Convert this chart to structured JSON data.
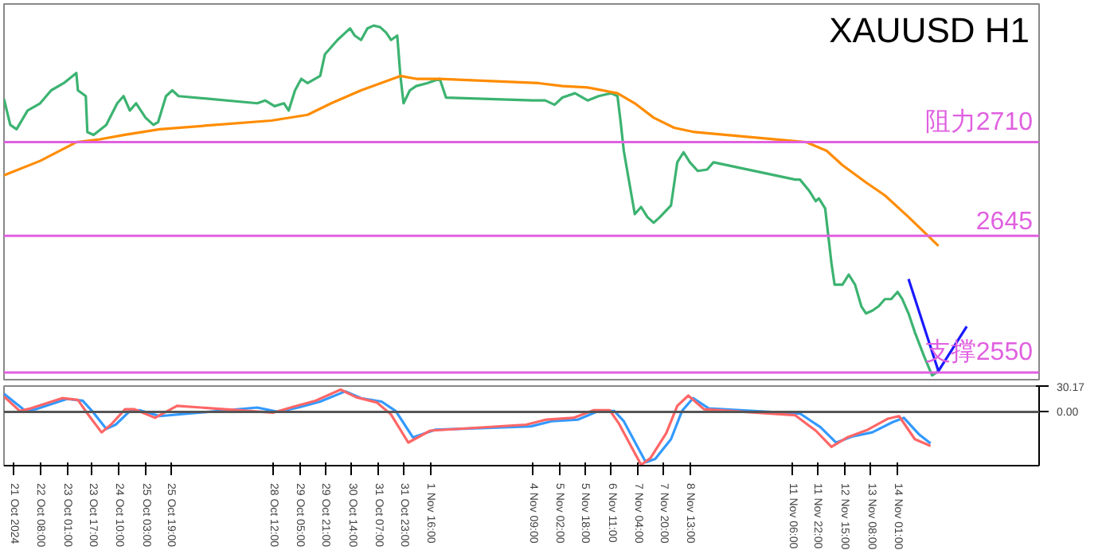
{
  "chart_data": [
    {
      "type": "line",
      "title": "XAUUSD H1",
      "xlim": [
        "2024-10-21T09:00",
        "2024-11-17T19:00"
      ],
      "ylim": [
        2545,
        2806
      ],
      "tick_labels": false,
      "series": [
        {
          "color": "#3cb371",
          "x": [
            "2024-10-21T09:00",
            "2024-10-21T13:00",
            "2024-10-21T17:00",
            "2024-10-22T00:00",
            "2024-10-22T08:00",
            "2024-10-22T15:00",
            "2024-10-22T23:00",
            "2024-10-23T07:00",
            "2024-10-23T08:00",
            "2024-10-23T13:00",
            "2024-10-23T14:00",
            "2024-10-23T18:00",
            "2024-10-24T02:00",
            "2024-10-24T09:00",
            "2024-10-24T13:00",
            "2024-10-24T17:00",
            "2024-10-24T21:00",
            "2024-10-25T03:00",
            "2024-10-25T08:00",
            "2024-10-25T11:00",
            "2024-10-25T16:00",
            "2024-10-25T20:00",
            "2024-10-26T00:00",
            "2024-10-28T02:00",
            "2024-10-28T07:00",
            "2024-10-28T13:00",
            "2024-10-28T19:00",
            "2024-10-28T22:00",
            "2024-10-29T02:00",
            "2024-10-29T06:00",
            "2024-10-29T10:00",
            "2024-10-29T18:00",
            "2024-10-29T21:00",
            "2024-10-30T01:00",
            "2024-10-30T05:00",
            "2024-10-30T10:00",
            "2024-10-30T13:00",
            "2024-10-30T16:00",
            "2024-10-30T20:00",
            "2024-10-31T00:00",
            "2024-10-31T04:00",
            "2024-10-31T08:00",
            "2024-10-31T12:00",
            "2024-10-31T15:00",
            "2024-10-31T19:00",
            "2024-10-31T21:00",
            "2024-10-31T23:00",
            "2024-11-01T03:00",
            "2024-11-01T07:00",
            "2024-11-01T14:00",
            "2024-11-01T22:00",
            "2024-11-02T02:00",
            "2024-11-04T09:00",
            "2024-11-04T17:00",
            "2024-11-04T23:00",
            "2024-11-05T04:00",
            "2024-11-05T12:00",
            "2024-11-05T20:00",
            "2024-11-06T03:00",
            "2024-11-06T11:00",
            "2024-11-06T15:00",
            "2024-11-06T17:00",
            "2024-11-06T19:00",
            "2024-11-06T22:00",
            "2024-11-07T02:00",
            "2024-11-07T06:00",
            "2024-11-07T10:00",
            "2024-11-07T14:00",
            "2024-11-07T18:00",
            "2024-11-08T01:00",
            "2024-11-08T05:00",
            "2024-11-08T09:00",
            "2024-11-08T13:00",
            "2024-11-08T18:00",
            "2024-11-09T00:00",
            "2024-11-09T04:00",
            "2024-11-11T08:00",
            "2024-11-11T11:00",
            "2024-11-11T17:00",
            "2024-11-11T21:00",
            "2024-11-11T23:00",
            "2024-11-12T03:00",
            "2024-11-12T07:00",
            "2024-11-12T09:00",
            "2024-11-12T14:00",
            "2024-11-12T18:00",
            "2024-11-12T22:00",
            "2024-11-13T02:00",
            "2024-11-13T05:00",
            "2024-11-13T09:00",
            "2024-11-13T13:00",
            "2024-11-13T17:00",
            "2024-11-13T21:00",
            "2024-11-14T01:00",
            "2024-11-14T04:00",
            "2024-11-14T08:00",
            "2024-11-14T12:00",
            "2024-11-14T18:00",
            "2024-11-14T23:00",
            "2024-11-15T03:00"
          ],
          "values": [
            2740,
            2722,
            2719,
            2732,
            2737,
            2746,
            2751,
            2758,
            2746,
            2742,
            2717,
            2715,
            2722,
            2737,
            2742,
            2732,
            2737,
            2727,
            2722,
            2724,
            2742,
            2746,
            2742,
            2737,
            2739,
            2735,
            2737,
            2732,
            2746,
            2754,
            2751,
            2756,
            2771,
            2776,
            2781,
            2786,
            2789,
            2784,
            2781,
            2789,
            2791,
            2790,
            2786,
            2781,
            2784,
            2756,
            2737,
            2746,
            2749,
            2751,
            2754,
            2741,
            2739,
            2739,
            2736,
            2741,
            2744,
            2739,
            2742,
            2744,
            2742,
            2724,
            2704,
            2685,
            2660,
            2665,
            2658,
            2654,
            2658,
            2666,
            2696,
            2703,
            2696,
            2690,
            2691,
            2696,
            2684,
            2684,
            2676,
            2669,
            2671,
            2664,
            2626,
            2611,
            2611,
            2618,
            2611,
            2596,
            2591,
            2593,
            2596,
            2601,
            2601,
            2606,
            2601,
            2591,
            2578,
            2561,
            2548,
            2551
          ]
        },
        {
          "color": "#ff8c00",
          "x": [
            "2024-10-21T09:00",
            "2024-10-22T08:00",
            "2024-10-23T07:00",
            "2024-10-23T22:00",
            "2024-10-24T13:00",
            "2024-10-25T12:00",
            "2024-10-28T11:00",
            "2024-10-29T10:00",
            "2024-10-30T01:00",
            "2024-10-30T20:00",
            "2024-10-31T21:00",
            "2024-11-01T07:00",
            "2024-11-01T22:00",
            "2024-11-04T13:00",
            "2024-11-05T04:00",
            "2024-11-05T20:00",
            "2024-11-06T15:00",
            "2024-11-07T02:00",
            "2024-11-07T14:00",
            "2024-11-08T03:00",
            "2024-11-08T16:00",
            "2024-11-11T15:00",
            "2024-11-12T04:00",
            "2024-11-12T14:00",
            "2024-11-13T05:00",
            "2024-11-13T17:00",
            "2024-11-14T08:00",
            "2024-11-15T03:00"
          ],
          "values": [
            2687,
            2697,
            2710,
            2712,
            2715,
            2719,
            2725,
            2729,
            2737,
            2746,
            2756,
            2754,
            2754,
            2751,
            2749,
            2748,
            2744,
            2737,
            2727,
            2720,
            2717,
            2710,
            2704,
            2694,
            2682,
            2673,
            2658,
            2638
          ]
        },
        {
          "color": "#1a1aff",
          "x": [
            "2024-11-14T08:00",
            "2024-11-15T03:00",
            "2024-11-15T21:00"
          ],
          "values": [
            2615,
            2551,
            2582
          ]
        }
      ],
      "ref_lines": [
        {
          "axis": "y",
          "value": 2710,
          "label": "阻力2710",
          "color": "#e060e0"
        },
        {
          "axis": "y",
          "value": 2645,
          "label": "2645",
          "color": "#e060e0"
        },
        {
          "axis": "y",
          "value": 2550,
          "label": "支撑2550",
          "color": "#e060e0"
        }
      ]
    },
    {
      "type": "line",
      "xlim": [
        "2024-10-21T09:00",
        "2024-11-17T19:00"
      ],
      "ylim": [
        -63,
        30.17
      ],
      "yticks": [
        {
          "value": 30.17,
          "label": "30.17"
        },
        {
          "value": 0,
          "label": "0.00"
        }
      ],
      "xticks": [
        {
          "value": "2024-10-21T15:00",
          "label": "21 Oct 2024"
        },
        {
          "value": "2024-10-22T08:00",
          "label": "22 Oct 08:00"
        },
        {
          "value": "2024-10-23T01:00",
          "label": "23 Oct 01:00"
        },
        {
          "value": "2024-10-23T17:00",
          "label": "23 Oct 17:00"
        },
        {
          "value": "2024-10-24T10:00",
          "label": "24 Oct 10:00"
        },
        {
          "value": "2024-10-25T03:00",
          "label": "25 Oct 03:00"
        },
        {
          "value": "2024-10-25T19:00",
          "label": "25 Oct 19:00"
        },
        {
          "value": "2024-10-28T12:00",
          "label": "28 Oct 12:00"
        },
        {
          "value": "2024-10-29T05:00",
          "label": "29 Oct 05:00"
        },
        {
          "value": "2024-10-29T21:00",
          "label": "29 Oct 21:00"
        },
        {
          "value": "2024-10-30T14:00",
          "label": "30 Oct 14:00"
        },
        {
          "value": "2024-10-31T07:00",
          "label": "31 Oct 07:00"
        },
        {
          "value": "2024-10-31T23:00",
          "label": "31 Oct 23:00"
        },
        {
          "value": "2024-11-01T16:00",
          "label": "1 Nov 16:00"
        },
        {
          "value": "2024-11-04T09:00",
          "label": "4 Nov 09:00"
        },
        {
          "value": "2024-11-05T02:00",
          "label": "5 Nov 02:00"
        },
        {
          "value": "2024-11-05T18:00",
          "label": "5 Nov 18:00"
        },
        {
          "value": "2024-11-06T11:00",
          "label": "6 Nov 11:00"
        },
        {
          "value": "2024-11-07T04:00",
          "label": "7 Nov 04:00"
        },
        {
          "value": "2024-11-07T20:00",
          "label": "7 Nov 20:00"
        },
        {
          "value": "2024-11-08T13:00",
          "label": "8 Nov 13:00"
        },
        {
          "value": "2024-11-11T06:00",
          "label": "11 Nov 06:00"
        },
        {
          "value": "2024-11-11T22:00",
          "label": "11 Nov 22:00"
        },
        {
          "value": "2024-11-12T15:00",
          "label": "12 Nov 15:00"
        },
        {
          "value": "2024-11-13T08:00",
          "label": "13 Nov 08:00"
        },
        {
          "value": "2024-11-14T01:00",
          "label": "14 Nov 01:00"
        }
      ],
      "series": [
        {
          "color": "#3399ff",
          "x": [
            "2024-10-21T09:00",
            "2024-10-21T22:00",
            "2024-10-22T05:00",
            "2024-10-23T01:00",
            "2024-10-23T11:00",
            "2024-10-23T17:00",
            "2024-10-24T02:00",
            "2024-10-24T08:00",
            "2024-10-24T17:00",
            "2024-10-24T23:00",
            "2024-10-25T12:00",
            "2024-10-28T02:00",
            "2024-10-28T15:00",
            "2024-10-29T04:00",
            "2024-10-29T18:00",
            "2024-10-30T10:00",
            "2024-10-30T20:00",
            "2024-10-31T09:00",
            "2024-10-31T18:00",
            "2024-11-01T05:00",
            "2024-11-01T19:00",
            "2024-11-04T08:00",
            "2024-11-04T21:00",
            "2024-11-05T14:00",
            "2024-11-06T03:00",
            "2024-11-06T13:00",
            "2024-11-06T19:00",
            "2024-11-07T09:00",
            "2024-11-07T15:00",
            "2024-11-08T01:00",
            "2024-11-08T08:00",
            "2024-11-08T15:00",
            "2024-11-09T01:00",
            "2024-11-11T11:00",
            "2024-11-12T00:00",
            "2024-11-12T10:00",
            "2024-11-12T20:00",
            "2024-11-13T09:00",
            "2024-11-13T22:00",
            "2024-11-14T05:00",
            "2024-11-14T15:00",
            "2024-11-14T22:00"
          ],
          "values": [
            21,
            2,
            3,
            15,
            13,
            1,
            -20,
            -15,
            1,
            2,
            -5,
            5,
            0,
            5,
            12,
            24,
            16,
            12,
            1,
            -30,
            -21,
            -17,
            -11,
            -9,
            1,
            1,
            -11,
            -59,
            -55,
            -32,
            1,
            16,
            4,
            -2,
            -18,
            -36,
            -29,
            -24,
            -12,
            -7,
            -27,
            -37
          ]
        },
        {
          "color": "#ff6666",
          "x": [
            "2024-10-21T09:00",
            "2024-10-21T19:00",
            "2024-10-22T02:00",
            "2024-10-22T22:00",
            "2024-10-23T08:00",
            "2024-10-23T14:00",
            "2024-10-23T23:00",
            "2024-10-24T05:00",
            "2024-10-24T14:00",
            "2024-10-24T20:00",
            "2024-10-25T09:00",
            "2024-10-25T23:00",
            "2024-10-28T12:00",
            "2024-10-29T01:00",
            "2024-10-29T15:00",
            "2024-10-30T07:00",
            "2024-10-30T17:00",
            "2024-10-31T06:00",
            "2024-10-31T15:00",
            "2024-11-01T02:00",
            "2024-11-01T16:00",
            "2024-11-04T05:00",
            "2024-11-04T18:00",
            "2024-11-05T11:00",
            "2024-11-06T00:00",
            "2024-11-06T10:00",
            "2024-11-06T16:00",
            "2024-11-07T06:00",
            "2024-11-07T12:00",
            "2024-11-07T22:00",
            "2024-11-08T05:00",
            "2024-11-08T12:00",
            "2024-11-08T22:00",
            "2024-11-11T08:00",
            "2024-11-11T21:00",
            "2024-11-12T07:00",
            "2024-11-12T17:00",
            "2024-11-13T06:00",
            "2024-11-13T19:00",
            "2024-11-14T02:00",
            "2024-11-14T12:00",
            "2024-11-14T22:00"
          ],
          "values": [
            18,
            1,
            4,
            16,
            14,
            -2,
            -24,
            -15,
            3,
            3,
            -7,
            7,
            -1,
            6,
            13,
            26,
            17,
            11,
            -3,
            -36,
            -22,
            -15,
            -9,
            -7,
            2,
            2,
            -14,
            -62,
            -54,
            -25,
            7,
            19,
            3,
            -4,
            -22,
            -41,
            -30,
            -21,
            -8,
            -5,
            -32,
            -40
          ]
        }
      ],
      "ref_lines": [
        {
          "axis": "y",
          "value": 0,
          "color": "#555555"
        }
      ]
    }
  ]
}
